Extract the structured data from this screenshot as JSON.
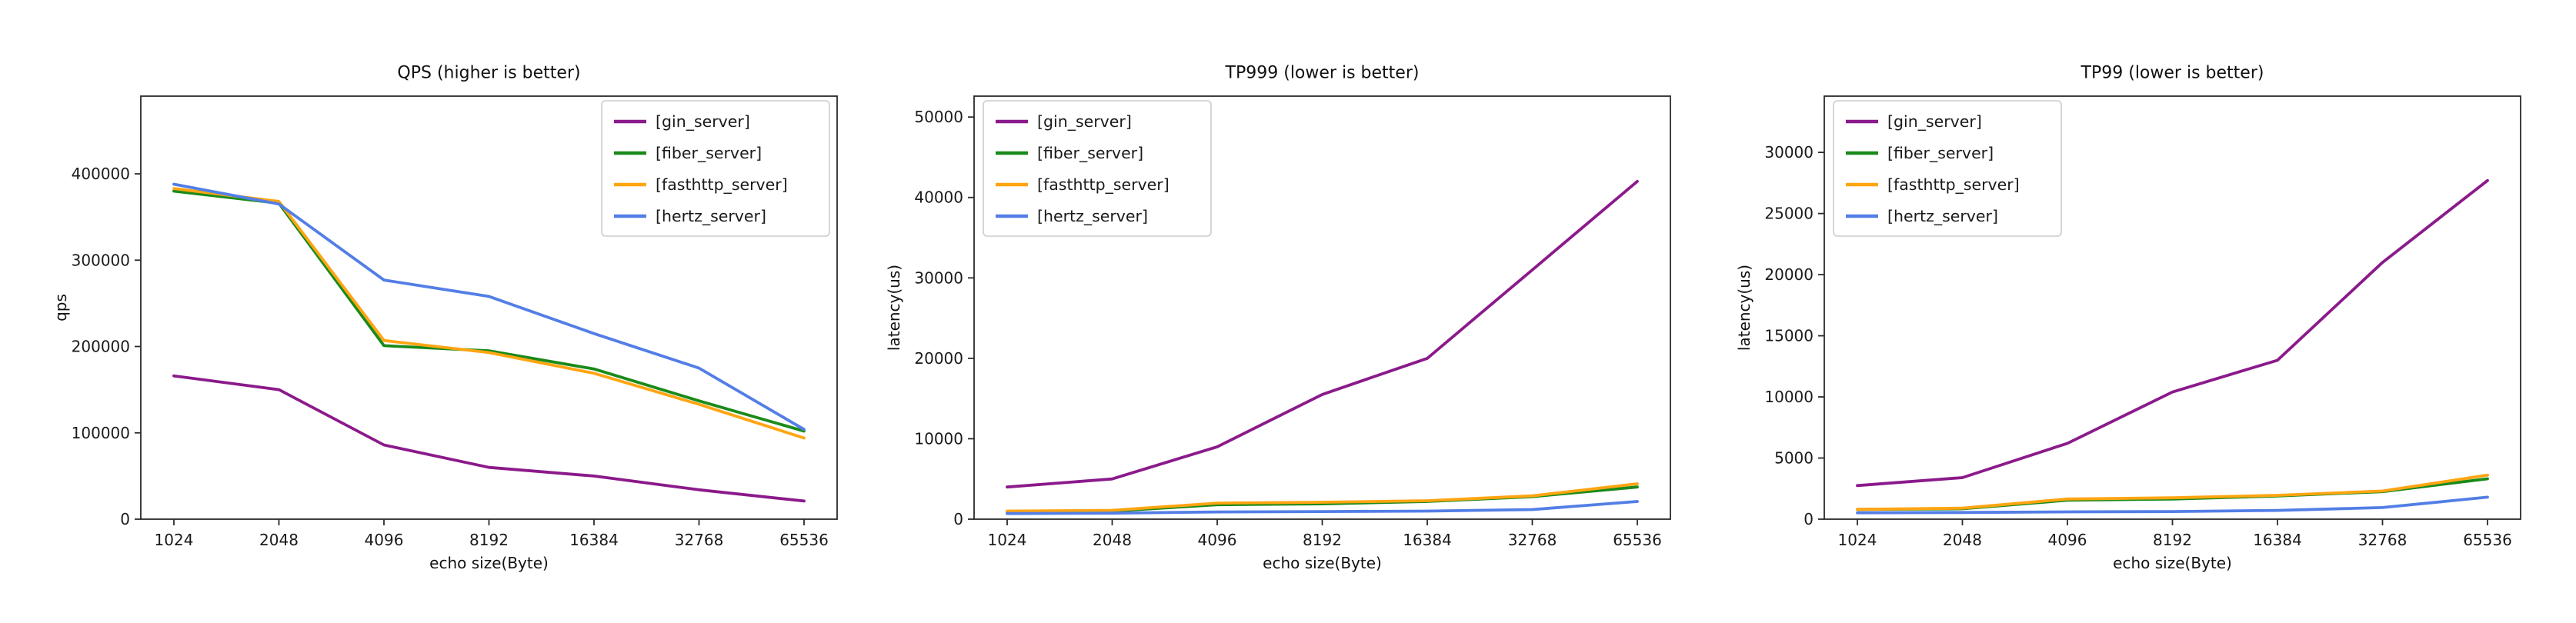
{
  "page": {
    "background": "#ffffff",
    "text_color": "#1a1a1a",
    "spine_color": "#2a2a2a",
    "legend_border_color": "#cccccc"
  },
  "chart_data": [
    {
      "type": "line",
      "title": "QPS (higher is better)",
      "xlabel": "echo size(Byte)",
      "ylabel": "qps",
      "categories": [
        "1024",
        "2048",
        "4096",
        "8192",
        "16384",
        "32768",
        "65536"
      ],
      "yticks": [
        0,
        100000,
        200000,
        300000,
        400000
      ],
      "ylim": [
        0,
        490000
      ],
      "grid": false,
      "legend_position": "top-right",
      "series": [
        {
          "name": "[gin_server]",
          "color": "#8b1a8b",
          "values": [
            166000,
            150000,
            86000,
            60000,
            50000,
            34000,
            21000
          ]
        },
        {
          "name": "[fiber_server]",
          "color": "#1a8a1a",
          "values": [
            380000,
            366000,
            201000,
            195000,
            174000,
            137000,
            102000
          ]
        },
        {
          "name": "[fasthttp_server]",
          "color": "#ffa512",
          "values": [
            383000,
            368000,
            207000,
            193000,
            169000,
            133000,
            94000
          ]
        },
        {
          "name": "[hertz_server]",
          "color": "#537ee6",
          "values": [
            388000,
            365000,
            277000,
            258000,
            215000,
            175000,
            104000
          ]
        }
      ]
    },
    {
      "type": "line",
      "title": "TP999 (lower is better)",
      "xlabel": "echo size(Byte)",
      "ylabel": "latency(us)",
      "categories": [
        "1024",
        "2048",
        "4096",
        "8192",
        "16384",
        "32768",
        "65536"
      ],
      "yticks": [
        0,
        10000,
        20000,
        30000,
        40000,
        50000
      ],
      "ylim": [
        0,
        52600
      ],
      "grid": false,
      "legend_position": "top-left",
      "series": [
        {
          "name": "[gin_server]",
          "color": "#8b1a8b",
          "values": [
            4000,
            5000,
            9000,
            15500,
            20000,
            31000,
            42000
          ]
        },
        {
          "name": "[fiber_server]",
          "color": "#1a8a1a",
          "values": [
            900,
            1000,
            1800,
            1900,
            2200,
            2800,
            4000
          ]
        },
        {
          "name": "[fasthttp_server]",
          "color": "#ffa512",
          "values": [
            1000,
            1100,
            2000,
            2100,
            2300,
            2900,
            4400
          ]
        },
        {
          "name": "[hertz_server]",
          "color": "#537ee6",
          "values": [
            700,
            750,
            900,
            950,
            1000,
            1200,
            2200
          ]
        }
      ]
    },
    {
      "type": "line",
      "title": "TP99 (lower is better)",
      "xlabel": "echo size(Byte)",
      "ylabel": "latency(us)",
      "categories": [
        "1024",
        "2048",
        "4096",
        "8192",
        "16384",
        "32768",
        "65536"
      ],
      "yticks": [
        0,
        5000,
        10000,
        15000,
        20000,
        25000,
        30000
      ],
      "ylim": [
        0,
        34600
      ],
      "grid": false,
      "legend_position": "top-left",
      "series": [
        {
          "name": "[gin_server]",
          "color": "#8b1a8b",
          "values": [
            2750,
            3400,
            6200,
            10400,
            13000,
            21000,
            27700
          ]
        },
        {
          "name": "[fiber_server]",
          "color": "#1a8a1a",
          "values": [
            800,
            850,
            1550,
            1650,
            1900,
            2250,
            3300
          ]
        },
        {
          "name": "[fasthttp_server]",
          "color": "#ffa512",
          "values": [
            800,
            900,
            1650,
            1750,
            1950,
            2300,
            3600
          ]
        },
        {
          "name": "[hertz_server]",
          "color": "#537ee6",
          "values": [
            520,
            550,
            600,
            620,
            720,
            950,
            1800
          ]
        }
      ]
    }
  ]
}
